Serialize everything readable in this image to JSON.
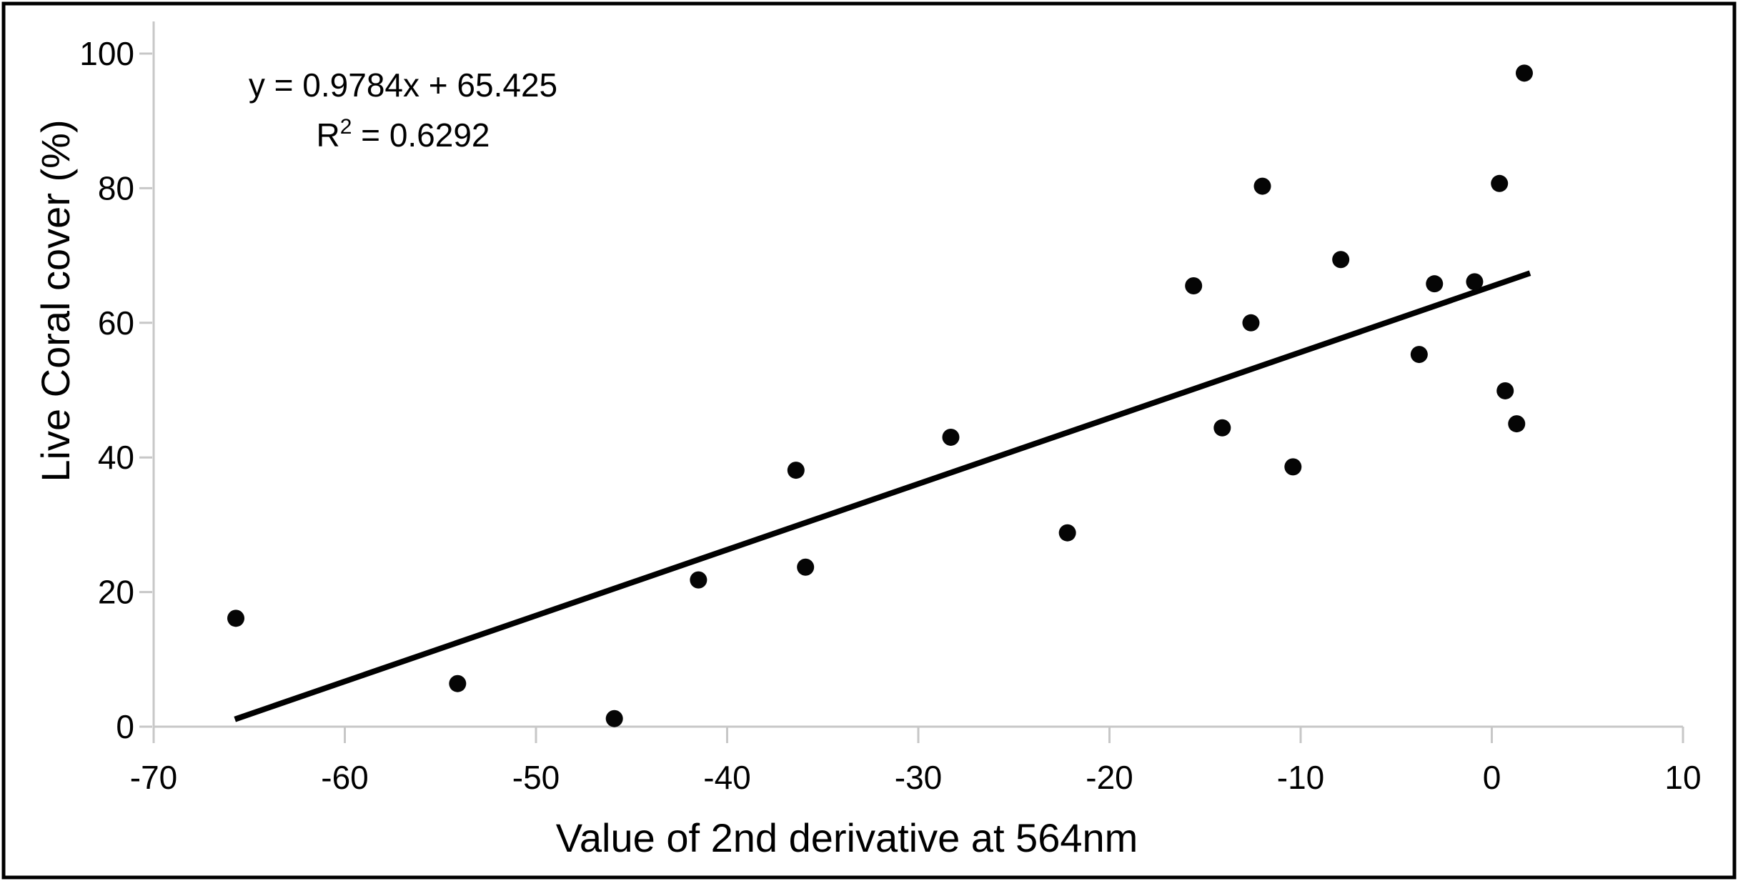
{
  "chart_data": {
    "type": "scatter",
    "title": "",
    "xlabel": "Value of 2nd derivative at 564nm",
    "ylabel": "Live Coral cover (%)",
    "xlim": [
      -70,
      10
    ],
    "ylim": [
      0,
      100
    ],
    "x_ticks": [
      -70,
      -60,
      -50,
      -40,
      -30,
      -20,
      -10,
      0,
      10
    ],
    "y_ticks": [
      0,
      20,
      40,
      60,
      80,
      100
    ],
    "grid": false,
    "legend": "none",
    "annotation": {
      "equation": "y = 0.9784x + 65.425",
      "r2_prefix": "R",
      "r2_sup": "2",
      "r2_rest": " = 0.6292"
    },
    "points": [
      [
        -65.7,
        16.1
      ],
      [
        -54.1,
        6.4
      ],
      [
        -45.9,
        1.2
      ],
      [
        -41.5,
        21.8
      ],
      [
        -36.4,
        38.1
      ],
      [
        -35.9,
        23.7
      ],
      [
        -28.3,
        43.0
      ],
      [
        -22.2,
        28.8
      ],
      [
        -15.6,
        65.5
      ],
      [
        -14.1,
        44.4
      ],
      [
        -12.6,
        60.0
      ],
      [
        -12.0,
        80.3
      ],
      [
        -10.4,
        38.6
      ],
      [
        -7.9,
        69.4
      ],
      [
        -3.8,
        55.3
      ],
      [
        -3.0,
        65.8
      ],
      [
        -0.9,
        66.1
      ],
      [
        0.4,
        80.7
      ],
      [
        0.7,
        49.9
      ],
      [
        1.3,
        45.0
      ],
      [
        1.7,
        97.1
      ]
    ],
    "trendline": {
      "slope": 0.9784,
      "intercept": 65.425,
      "x_start": -65.75,
      "x_end": 2.0
    },
    "colors": {
      "point": "#050505",
      "trend": "#000000",
      "axis": "#c7c7c7",
      "text": "#000000",
      "frame": "#000000",
      "background": "#ffffff"
    }
  }
}
